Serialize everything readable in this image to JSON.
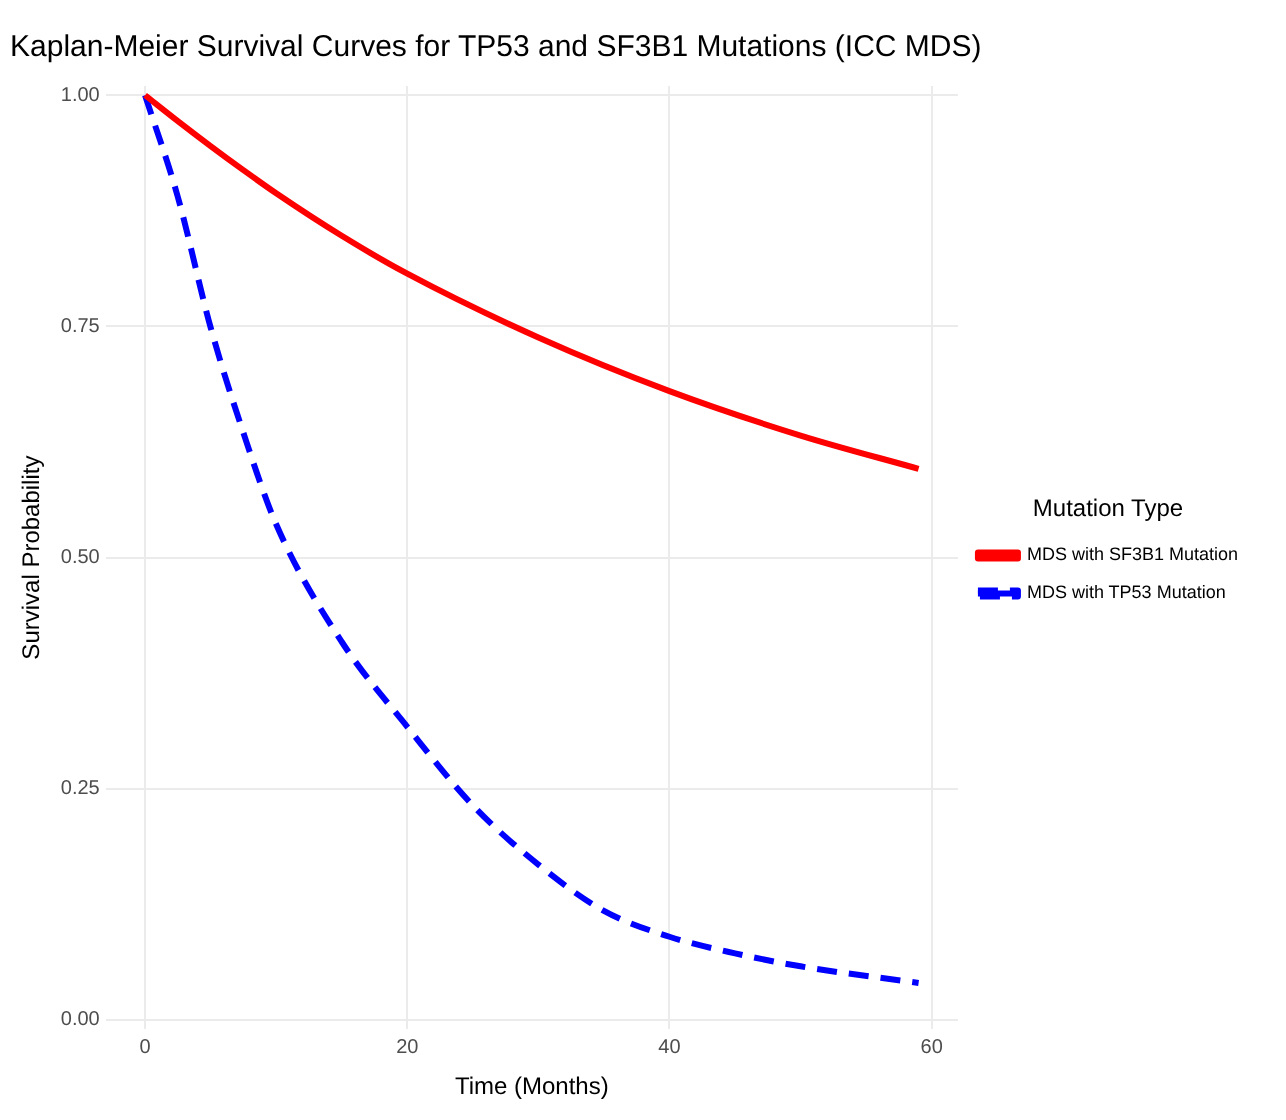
{
  "chart_data": {
    "type": "line",
    "title": "Kaplan-Meier Survival Curves for TP53 and SF3B1 Mutations (ICC MDS)",
    "xlabel": "Time (Months)",
    "ylabel": "Survival Probability",
    "legend_title": "Mutation Type",
    "legend": "right",
    "grid": true,
    "marker": "none",
    "xlim": [
      -3,
      62
    ],
    "xticks": [
      0,
      20,
      40,
      60
    ],
    "ylim": [
      -0.01,
      1.01
    ],
    "yticks": [
      {
        "value": 0,
        "label": "0.00"
      },
      {
        "value": 0.25,
        "label": "0.25"
      },
      {
        "value": 0.5,
        "label": "0.50"
      },
      {
        "value": 0.75,
        "label": "0.75"
      },
      {
        "value": 1,
        "label": "1.00"
      }
    ],
    "series": [
      {
        "name": "MDS with SF3B1 Mutation",
        "color": "#ff0000",
        "line_style": "solid",
        "x": [
          0,
          2.5,
          5,
          7.5,
          10,
          15,
          20,
          30,
          40,
          50,
          59
        ],
        "values": [
          1,
          0.972,
          0.945,
          0.919,
          0.894,
          0.848,
          0.807,
          0.738,
          0.68,
          0.632,
          0.596
        ]
      },
      {
        "name": "MDS with TP53 Mutation",
        "color": "#0000ff",
        "line_style": "dashed",
        "x": [
          0,
          2.5,
          5,
          7.5,
          10,
          15,
          20,
          25,
          30,
          35,
          40,
          45,
          50,
          59
        ],
        "values": [
          1,
          0.89,
          0.749,
          0.635,
          0.536,
          0.409,
          0.317,
          0.232,
          0.168,
          0.118,
          0.09,
          0.072,
          0.058,
          0.04
        ]
      }
    ]
  }
}
